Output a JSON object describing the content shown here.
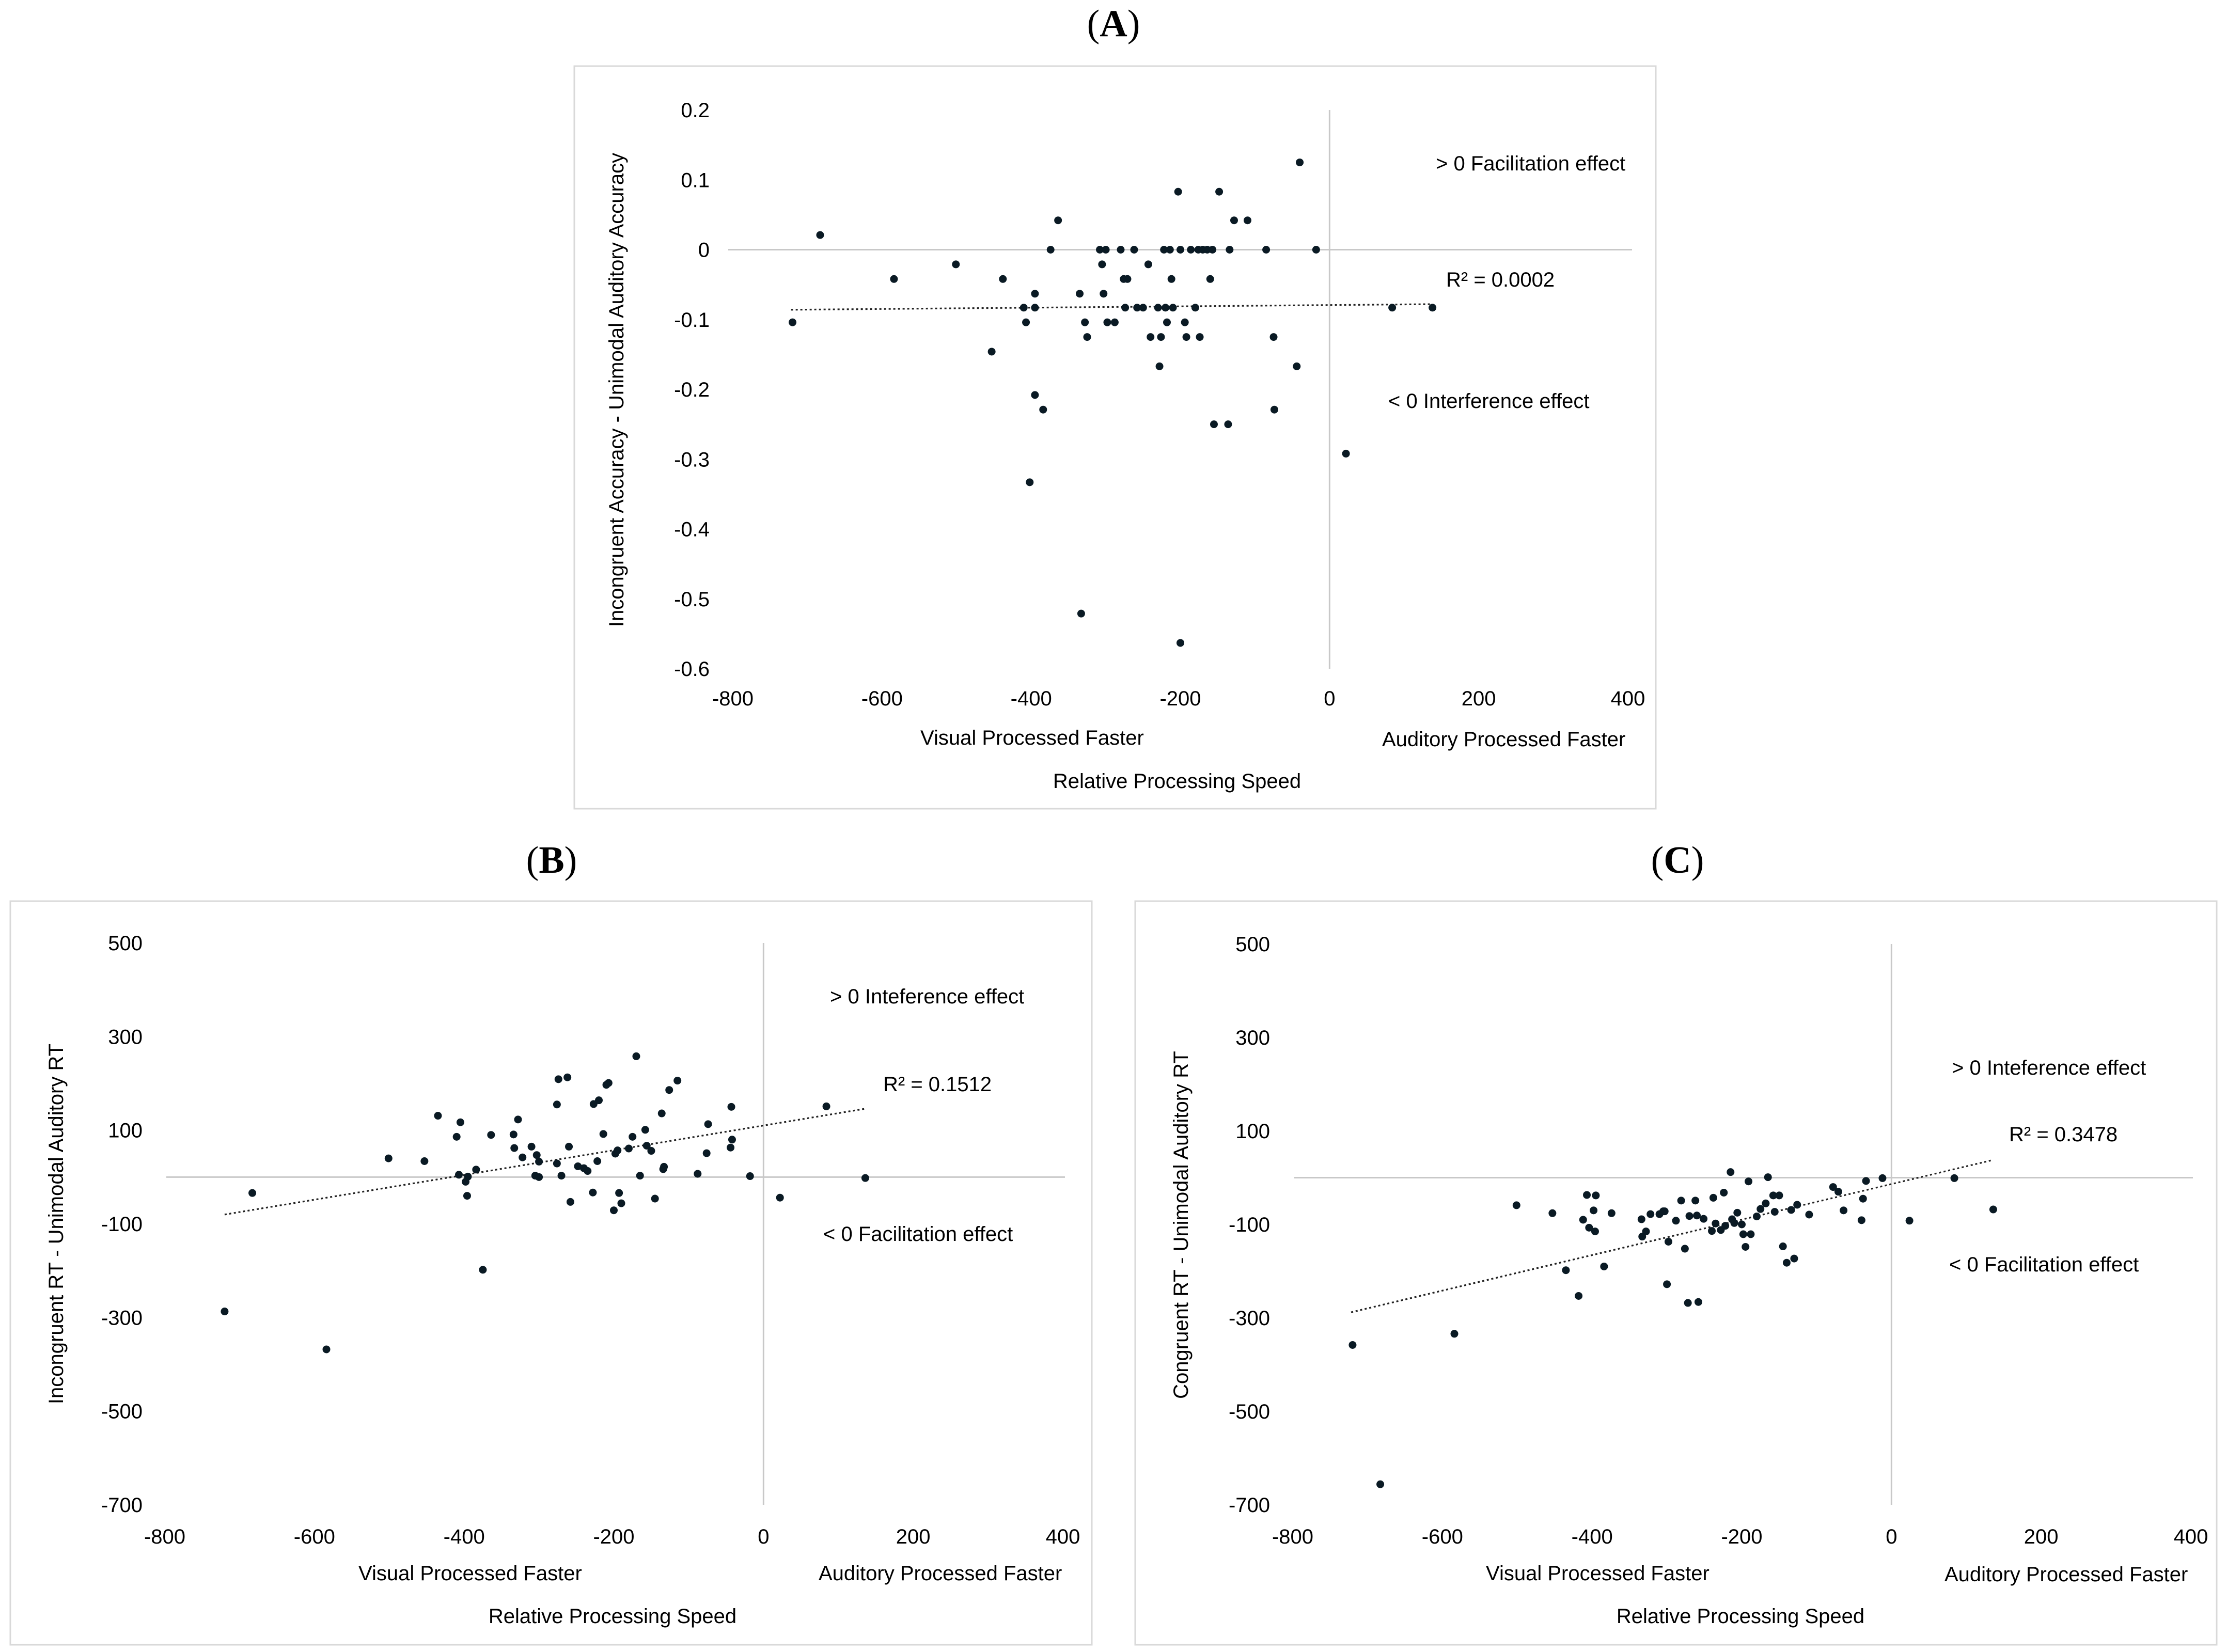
{
  "chart_data": [
    {
      "panel_label": "A",
      "type": "scatter",
      "title": "",
      "xlabel": "Relative Processing Speed",
      "ylabel": "Incongruent Accuracy - Unimodal Auditory Accuracy",
      "x_left_note": "Visual Processed Faster",
      "x_right_note": "Auditory Processed Faster",
      "annotation_top": "> 0 Facilitation effect",
      "annotation_bottom": "< 0 Interference effect",
      "r2_label": "R² = 0.0002",
      "xlim": [
        -800,
        400
      ],
      "ylim": [
        -0.6,
        0.2
      ],
      "xticks": [
        -800,
        -600,
        -400,
        -200,
        0,
        200,
        400
      ],
      "yticks": [
        0.2,
        0.1,
        0,
        -0.1,
        -0.2,
        -0.3,
        -0.4,
        -0.5,
        -0.6
      ],
      "xtick_labels": [
        "-800",
        "-600",
        "-400",
        "-200",
        "0",
        "200",
        "400"
      ],
      "ytick_labels": [
        "0.2",
        "0.1",
        "0",
        "-0.1",
        "-0.2",
        "-0.3",
        "-0.4",
        "-0.5",
        "-0.6"
      ],
      "trendline": {
        "x": [
          -722,
          138
        ],
        "y": [
          -0.086,
          -0.078
        ]
      },
      "points": [
        [
          -720,
          -0.104
        ],
        [
          -683,
          0.021
        ],
        [
          -584,
          -0.042
        ],
        [
          -501,
          -0.021
        ],
        [
          -453,
          -0.146
        ],
        [
          -438,
          -0.042
        ],
        [
          -410,
          -0.083
        ],
        [
          -407,
          -0.104
        ],
        [
          -402,
          -0.333
        ],
        [
          -395,
          -0.083
        ],
        [
          -395,
          -0.063
        ],
        [
          -395,
          -0.208
        ],
        [
          -384,
          -0.229
        ],
        [
          -374,
          0.0
        ],
        [
          -364,
          0.042
        ],
        [
          -335,
          -0.063
        ],
        [
          -333,
          -0.521
        ],
        [
          -328,
          -0.104
        ],
        [
          -325,
          -0.125
        ],
        [
          -308,
          0.0
        ],
        [
          -305,
          -0.021
        ],
        [
          -303,
          -0.063
        ],
        [
          -300,
          0.0
        ],
        [
          -298,
          -0.104
        ],
        [
          -288,
          -0.104
        ],
        [
          -280,
          0.0
        ],
        [
          -276,
          -0.042
        ],
        [
          -274,
          -0.083
        ],
        [
          -271,
          -0.042
        ],
        [
          -262,
          0.0
        ],
        [
          -258,
          -0.083
        ],
        [
          -250,
          -0.083
        ],
        [
          -243,
          -0.021
        ],
        [
          -240,
          -0.125
        ],
        [
          -230,
          -0.083
        ],
        [
          -228,
          -0.167
        ],
        [
          -226,
          -0.125
        ],
        [
          -222,
          0.0
        ],
        [
          -220,
          -0.083
        ],
        [
          -218,
          -0.104
        ],
        [
          -214,
          0.0
        ],
        [
          -212,
          -0.042
        ],
        [
          -210,
          -0.083
        ],
        [
          -203,
          0.083
        ],
        [
          -200,
          0.0
        ],
        [
          -200,
          -0.563
        ],
        [
          -194,
          -0.104
        ],
        [
          -192,
          -0.125
        ],
        [
          -186,
          0.0
        ],
        [
          -180,
          -0.083
        ],
        [
          -176,
          0.0
        ],
        [
          -174,
          -0.125
        ],
        [
          -170,
          0.0
        ],
        [
          -164,
          0.0
        ],
        [
          -160,
          -0.042
        ],
        [
          -157,
          0.0
        ],
        [
          -155,
          -0.25
        ],
        [
          -148,
          0.083
        ],
        [
          -136,
          -0.25
        ],
        [
          -134,
          0.0
        ],
        [
          -128,
          0.042
        ],
        [
          -110,
          0.042
        ],
        [
          -85,
          0.0
        ],
        [
          -75,
          -0.125
        ],
        [
          -74,
          -0.229
        ],
        [
          -44,
          -0.167
        ],
        [
          -40,
          0.125
        ],
        [
          -18,
          0.0
        ],
        [
          22,
          -0.292
        ],
        [
          84,
          -0.083
        ],
        [
          138,
          -0.083
        ]
      ]
    },
    {
      "panel_label": "B",
      "type": "scatter",
      "title": "",
      "xlabel": "Relative Processing Speed",
      "ylabel": "Incongruent RT - Unimodal Auditory RT",
      "x_left_note": "Visual Processed Faster",
      "x_right_note": "Auditory Processed Faster",
      "annotation_top": "> 0 Inteference effect",
      "annotation_bottom": "< 0 Facilitation effect",
      "r2_label": "R² = 0.1512",
      "xlim": [
        -800,
        400
      ],
      "ylim": [
        -700,
        500
      ],
      "xticks": [
        -800,
        -600,
        -400,
        -200,
        0,
        200,
        400
      ],
      "yticks": [
        500,
        300,
        100,
        -100,
        -300,
        -500,
        -700
      ],
      "xtick_labels": [
        "-800",
        "-600",
        "-400",
        "-200",
        "0",
        "200",
        "400"
      ],
      "ytick_labels": [
        "500",
        "300",
        "100",
        "-100",
        "-300",
        "-500",
        "-700"
      ],
      "trendline": {
        "x": [
          -720,
          136
        ],
        "y": [
          -80,
          146
        ]
      },
      "points": [
        [
          -720,
          -287
        ],
        [
          -683,
          -34
        ],
        [
          -584,
          -368
        ],
        [
          -501,
          40
        ],
        [
          -453,
          34
        ],
        [
          -435,
          131
        ],
        [
          -410,
          86
        ],
        [
          -407,
          5
        ],
        [
          -405,
          117
        ],
        [
          -398,
          -10
        ],
        [
          -396,
          -40
        ],
        [
          -395,
          1
        ],
        [
          -384,
          16
        ],
        [
          -375,
          -198
        ],
        [
          -364,
          90
        ],
        [
          -334,
          91
        ],
        [
          -333,
          62
        ],
        [
          -328,
          123
        ],
        [
          -322,
          42
        ],
        [
          -310,
          65
        ],
        [
          -305,
          3
        ],
        [
          -303,
          47
        ],
        [
          -300,
          33
        ],
        [
          -300,
          0
        ],
        [
          -276,
          29
        ],
        [
          -276,
          155
        ],
        [
          -274,
          209
        ],
        [
          -270,
          3
        ],
        [
          -262,
          213
        ],
        [
          -260,
          65
        ],
        [
          -258,
          -53
        ],
        [
          -248,
          23
        ],
        [
          -240,
          19
        ],
        [
          -235,
          13
        ],
        [
          -228,
          -33
        ],
        [
          -227,
          156
        ],
        [
          -222,
          34
        ],
        [
          -220,
          164
        ],
        [
          -214,
          92
        ],
        [
          -210,
          197
        ],
        [
          -207,
          201
        ],
        [
          -200,
          -71
        ],
        [
          -198,
          50
        ],
        [
          -195,
          57
        ],
        [
          -193,
          -34
        ],
        [
          -190,
          -56
        ],
        [
          -180,
          61
        ],
        [
          -175,
          86
        ],
        [
          -170,
          258
        ],
        [
          -165,
          3
        ],
        [
          -158,
          101
        ],
        [
          -156,
          67
        ],
        [
          -150,
          56
        ],
        [
          -145,
          -46
        ],
        [
          -136,
          136
        ],
        [
          -134,
          17
        ],
        [
          -133,
          22
        ],
        [
          -126,
          186
        ],
        [
          -115,
          206
        ],
        [
          -88,
          7
        ],
        [
          -74,
          113
        ],
        [
          -76,
          51
        ],
        [
          -44,
          63
        ],
        [
          -43,
          150
        ],
        [
          -42,
          80
        ],
        [
          -18,
          2
        ],
        [
          22,
          -44
        ],
        [
          84,
          151
        ],
        [
          136,
          -2
        ]
      ]
    },
    {
      "panel_label": "C",
      "type": "scatter",
      "title": "",
      "xlabel": "Relative Processing Speed",
      "ylabel": "Congruent RT - Unimodal Auditory RT",
      "x_left_note": "Visual Processed Faster",
      "x_right_note": "Auditory Processed Faster",
      "annotation_top": "> 0 Inteference effect",
      "annotation_bottom": "< 0 Facilitation effect",
      "r2_label": "R² = 0.3478",
      "xlim": [
        -800,
        400
      ],
      "ylim": [
        -700,
        500
      ],
      "xticks": [
        -800,
        -600,
        -400,
        -200,
        0,
        200,
        400
      ],
      "yticks": [
        500,
        300,
        100,
        -100,
        -300,
        -500,
        -700
      ],
      "xtick_labels": [
        "-800",
        "-600",
        "-400",
        "-200",
        "0",
        "200",
        "400"
      ],
      "ytick_labels": [
        "500",
        "300",
        "100",
        "-100",
        "-300",
        "-500",
        "-700"
      ],
      "trendline": {
        "x": [
          -722,
          136
        ],
        "y": [
          -288,
          38
        ]
      },
      "points": [
        [
          -720,
          -358
        ],
        [
          -683,
          -656
        ],
        [
          -584,
          -334
        ],
        [
          -501,
          -59
        ],
        [
          -453,
          -76
        ],
        [
          -435,
          -198
        ],
        [
          -418,
          -253
        ],
        [
          -412,
          -90
        ],
        [
          -407,
          -37
        ],
        [
          -404,
          -107
        ],
        [
          -398,
          -70
        ],
        [
          -396,
          -115
        ],
        [
          -395,
          -38
        ],
        [
          -384,
          -190
        ],
        [
          -374,
          -76
        ],
        [
          -334,
          -89
        ],
        [
          -333,
          -126
        ],
        [
          -328,
          -115
        ],
        [
          -322,
          -78
        ],
        [
          -310,
          -78
        ],
        [
          -305,
          -72
        ],
        [
          -303,
          -72
        ],
        [
          -300,
          -228
        ],
        [
          -298,
          -137
        ],
        [
          -288,
          -92
        ],
        [
          -281,
          -49
        ],
        [
          -276,
          -152
        ],
        [
          -272,
          -268
        ],
        [
          -270,
          -82
        ],
        [
          -262,
          -49
        ],
        [
          -260,
          -81
        ],
        [
          -258,
          -266
        ],
        [
          -251,
          -88
        ],
        [
          -240,
          -114
        ],
        [
          -238,
          -43
        ],
        [
          -235,
          -98
        ],
        [
          -228,
          -112
        ],
        [
          -224,
          -32
        ],
        [
          -222,
          -103
        ],
        [
          -215,
          12
        ],
        [
          -213,
          -89
        ],
        [
          -210,
          -97
        ],
        [
          -206,
          -75
        ],
        [
          -200,
          -100
        ],
        [
          -198,
          -121
        ],
        [
          -195,
          -148
        ],
        [
          -191,
          -8
        ],
        [
          -188,
          -121
        ],
        [
          -180,
          -83
        ],
        [
          -175,
          -67
        ],
        [
          -168,
          -55
        ],
        [
          -165,
          1
        ],
        [
          -158,
          -38
        ],
        [
          -156,
          -73
        ],
        [
          -150,
          -38
        ],
        [
          -145,
          -147
        ],
        [
          -140,
          -182
        ],
        [
          -134,
          -69
        ],
        [
          -130,
          -173
        ],
        [
          -126,
          -58
        ],
        [
          -110,
          -79
        ],
        [
          -78,
          -20
        ],
        [
          -71,
          -30
        ],
        [
          -64,
          -70
        ],
        [
          -40,
          -91
        ],
        [
          -38,
          -45
        ],
        [
          -34,
          -7
        ],
        [
          -12,
          -1
        ],
        [
          24,
          -92
        ],
        [
          84,
          -1
        ],
        [
          136,
          -68
        ]
      ]
    }
  ]
}
